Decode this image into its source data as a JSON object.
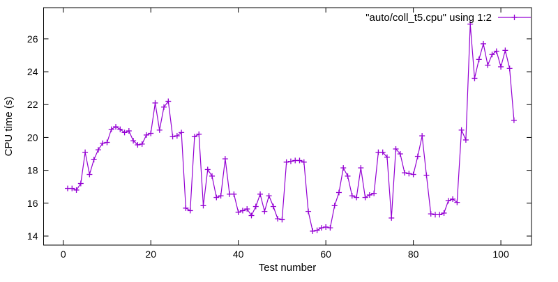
{
  "window": {
    "kind": "gnuplot-style-plot",
    "background": "#ffffff"
  },
  "chart_data": {
    "type": "line",
    "title": "",
    "xlabel": "Test number",
    "ylabel": "CPU time (s)",
    "legend": "\"auto/coll_t5.cpu\" using 1:2",
    "legend_position": "top-right-inside",
    "grid": false,
    "marker": "plus",
    "line_color": "#9400d3",
    "border_color": "#000000",
    "text_color": "#000000",
    "xlim": [
      -4.5,
      107
    ],
    "ylim": [
      13.45,
      27.9
    ],
    "x_ticks": [
      0,
      20,
      40,
      60,
      80,
      100
    ],
    "y_ticks": [
      14,
      16,
      18,
      20,
      22,
      24,
      26
    ],
    "x_start": 1,
    "x_step": 1,
    "values": [
      16.9,
      16.9,
      16.8,
      17.2,
      19.1,
      17.75,
      18.65,
      19.25,
      19.65,
      19.7,
      20.5,
      20.65,
      20.5,
      20.3,
      20.4,
      19.8,
      19.55,
      19.6,
      20.15,
      20.25,
      22.1,
      20.45,
      21.85,
      22.2,
      20.05,
      20.1,
      20.3,
      15.7,
      15.55,
      20.05,
      20.2,
      15.85,
      18.05,
      17.65,
      16.35,
      16.45,
      18.7,
      16.55,
      16.55,
      15.45,
      15.55,
      15.65,
      15.25,
      15.8,
      16.55,
      15.5,
      16.45,
      15.8,
      15.05,
      15.0,
      18.5,
      18.55,
      18.6,
      18.6,
      18.5,
      15.5,
      14.3,
      14.35,
      14.5,
      14.55,
      14.5,
      15.85,
      16.65,
      18.15,
      17.65,
      16.45,
      16.35,
      18.15,
      16.35,
      16.5,
      16.6,
      19.1,
      19.1,
      18.8,
      15.1,
      19.3,
      19.0,
      17.85,
      17.8,
      17.75,
      18.85,
      20.1,
      17.7,
      15.35,
      15.3,
      15.3,
      15.4,
      16.15,
      16.25,
      16.05,
      20.45,
      19.85,
      26.9,
      23.6,
      24.75,
      25.7,
      24.4,
      25.05,
      25.25,
      24.3,
      25.3,
      24.2,
      21.05
    ]
  }
}
